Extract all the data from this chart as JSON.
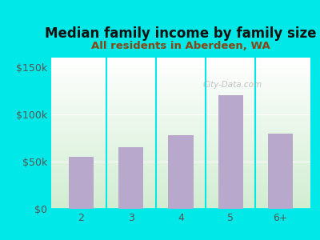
{
  "categories": [
    "2",
    "3",
    "4",
    "5",
    "6+"
  ],
  "values": [
    55000,
    65000,
    78000,
    120000,
    80000
  ],
  "bar_color": "#b8a8cc",
  "title": "Median family income by family size",
  "subtitle": "All residents in Aberdeen, WA",
  "title_fontsize": 12,
  "subtitle_fontsize": 9.5,
  "title_color": "#111111",
  "subtitle_color": "#8b4513",
  "outer_bg_color": "#00e8e8",
  "yticks": [
    0,
    50000,
    100000,
    150000
  ],
  "ytick_labels": [
    "$0",
    "$50k",
    "$100k",
    "$150k"
  ],
  "ylim": [
    0,
    160000
  ],
  "watermark": "City-Data.com",
  "tick_color": "#555555",
  "axis_label_fontsize": 9
}
